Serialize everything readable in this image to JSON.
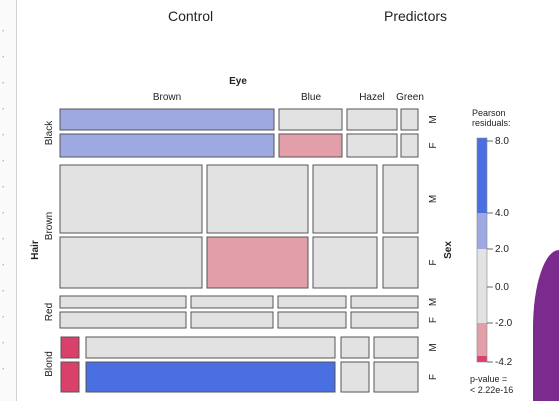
{
  "headings": {
    "control": "Control",
    "predictors": "Predictors"
  },
  "chart_data": {
    "type": "mosaic",
    "eye_label": "Eye",
    "hair_label": "Hair",
    "sex_label": "Sex",
    "eye_levels": [
      "Brown",
      "Blue",
      "Hazel",
      "Green"
    ],
    "hair_levels": [
      "Black",
      "Brown",
      "Red",
      "Blond"
    ],
    "sex_levels": [
      "M",
      "F"
    ],
    "residual_levels": [
      "above 4",
      "2 to 4",
      "-2 to 2",
      "-4 to -2",
      "below -4"
    ],
    "cells": [
      {
        "hair": "Black",
        "sex": "M",
        "eye": "Brown",
        "level": "2 to 4"
      },
      {
        "hair": "Black",
        "sex": "M",
        "eye": "Blue",
        "level": "-2 to 2"
      },
      {
        "hair": "Black",
        "sex": "M",
        "eye": "Hazel",
        "level": "-2 to 2"
      },
      {
        "hair": "Black",
        "sex": "M",
        "eye": "Green",
        "level": "-2 to 2"
      },
      {
        "hair": "Black",
        "sex": "F",
        "eye": "Brown",
        "level": "2 to 4"
      },
      {
        "hair": "Black",
        "sex": "F",
        "eye": "Blue",
        "level": "-4 to -2"
      },
      {
        "hair": "Black",
        "sex": "F",
        "eye": "Hazel",
        "level": "-2 to 2"
      },
      {
        "hair": "Black",
        "sex": "F",
        "eye": "Green",
        "level": "-2 to 2"
      },
      {
        "hair": "Brown",
        "sex": "M",
        "eye": "Brown",
        "level": "-2 to 2"
      },
      {
        "hair": "Brown",
        "sex": "M",
        "eye": "Blue",
        "level": "-2 to 2"
      },
      {
        "hair": "Brown",
        "sex": "M",
        "eye": "Hazel",
        "level": "-2 to 2"
      },
      {
        "hair": "Brown",
        "sex": "M",
        "eye": "Green",
        "level": "-2 to 2"
      },
      {
        "hair": "Brown",
        "sex": "F",
        "eye": "Brown",
        "level": "-2 to 2"
      },
      {
        "hair": "Brown",
        "sex": "F",
        "eye": "Blue",
        "level": "-4 to -2"
      },
      {
        "hair": "Brown",
        "sex": "F",
        "eye": "Hazel",
        "level": "-2 to 2"
      },
      {
        "hair": "Brown",
        "sex": "F",
        "eye": "Green",
        "level": "-2 to 2"
      },
      {
        "hair": "Red",
        "sex": "M",
        "eye": "Brown",
        "level": "-2 to 2"
      },
      {
        "hair": "Red",
        "sex": "M",
        "eye": "Blue",
        "level": "-2 to 2"
      },
      {
        "hair": "Red",
        "sex": "M",
        "eye": "Hazel",
        "level": "-2 to 2"
      },
      {
        "hair": "Red",
        "sex": "M",
        "eye": "Green",
        "level": "-2 to 2"
      },
      {
        "hair": "Red",
        "sex": "F",
        "eye": "Brown",
        "level": "-2 to 2"
      },
      {
        "hair": "Red",
        "sex": "F",
        "eye": "Blue",
        "level": "-2 to 2"
      },
      {
        "hair": "Red",
        "sex": "F",
        "eye": "Hazel",
        "level": "-2 to 2"
      },
      {
        "hair": "Red",
        "sex": "F",
        "eye": "Green",
        "level": "-2 to 2"
      },
      {
        "hair": "Blond",
        "sex": "M",
        "eye": "Brown",
        "level": "below -4"
      },
      {
        "hair": "Blond",
        "sex": "M",
        "eye": "Blue",
        "level": "-2 to 2"
      },
      {
        "hair": "Blond",
        "sex": "M",
        "eye": "Hazel",
        "level": "-2 to 2"
      },
      {
        "hair": "Blond",
        "sex": "M",
        "eye": "Green",
        "level": "-2 to 2"
      },
      {
        "hair": "Blond",
        "sex": "F",
        "eye": "Brown",
        "level": "below -4"
      },
      {
        "hair": "Blond",
        "sex": "F",
        "eye": "Blue",
        "level": "above 4"
      },
      {
        "hair": "Blond",
        "sex": "F",
        "eye": "Hazel",
        "level": "-2 to 2"
      },
      {
        "hair": "Blond",
        "sex": "F",
        "eye": "Green",
        "level": "-2 to 2"
      }
    ],
    "legend": {
      "title_line1": "Pearson",
      "title_line2": "residuals:",
      "ticks": [
        "8.0",
        "4.0",
        "2.0",
        "0.0",
        "-2.0",
        "-4.2"
      ],
      "pvalue_line1": "p-value =",
      "pvalue_line2": "< 2.22e-16",
      "colors": {
        "above 4": "#4a6fe3",
        "2 to 4": "#9ea9e2",
        "-2 to 2": "#e2e2e2",
        "-4 to -2": "#e29ea9",
        "below -4": "#d9416b"
      }
    }
  }
}
